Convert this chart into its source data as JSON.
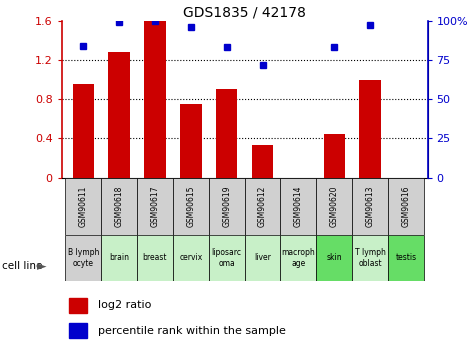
{
  "title": "GDS1835 / 42178",
  "categories": [
    "GSM90611",
    "GSM90618",
    "GSM90617",
    "GSM90615",
    "GSM90619",
    "GSM90612",
    "GSM90614",
    "GSM90620",
    "GSM90613",
    "GSM90616"
  ],
  "cell_lines": [
    "B lymph\nocyte",
    "brain",
    "breast",
    "cervix",
    "liposarc\noma",
    "liver",
    "macroph\nage",
    "skin",
    "T lymph\noblast",
    "testis"
  ],
  "cell_line_colors": [
    "#d0d0d0",
    "#c8f0c8",
    "#c8f0c8",
    "#c8f0c8",
    "#c8f0c8",
    "#c8f0c8",
    "#c8f0c8",
    "#66dd66",
    "#c8f0c8",
    "#66dd66"
  ],
  "gsm_bg_color": "#d0d0d0",
  "log2_ratio": [
    0.95,
    1.28,
    1.6,
    0.75,
    0.9,
    0.33,
    0.0,
    0.45,
    1.0,
    0.0
  ],
  "percentile_rank": [
    84,
    99,
    100,
    96,
    83,
    72,
    0,
    83,
    97,
    0
  ],
  "bar_color": "#cc0000",
  "dot_color": "#0000cc",
  "ylim_left": [
    0,
    1.6
  ],
  "ylim_right": [
    0,
    100
  ],
  "yticks_left": [
    0,
    0.4,
    0.8,
    1.2,
    1.6
  ],
  "yticks_right": [
    0,
    25,
    50,
    75,
    100
  ],
  "ylabel_left_labels": [
    "0",
    "0.4",
    "0.8",
    "1.2",
    "1.6"
  ],
  "ylabel_right_labels": [
    "0",
    "25",
    "50",
    "75",
    "100%"
  ],
  "gridlines": [
    0.4,
    0.8,
    1.2
  ]
}
